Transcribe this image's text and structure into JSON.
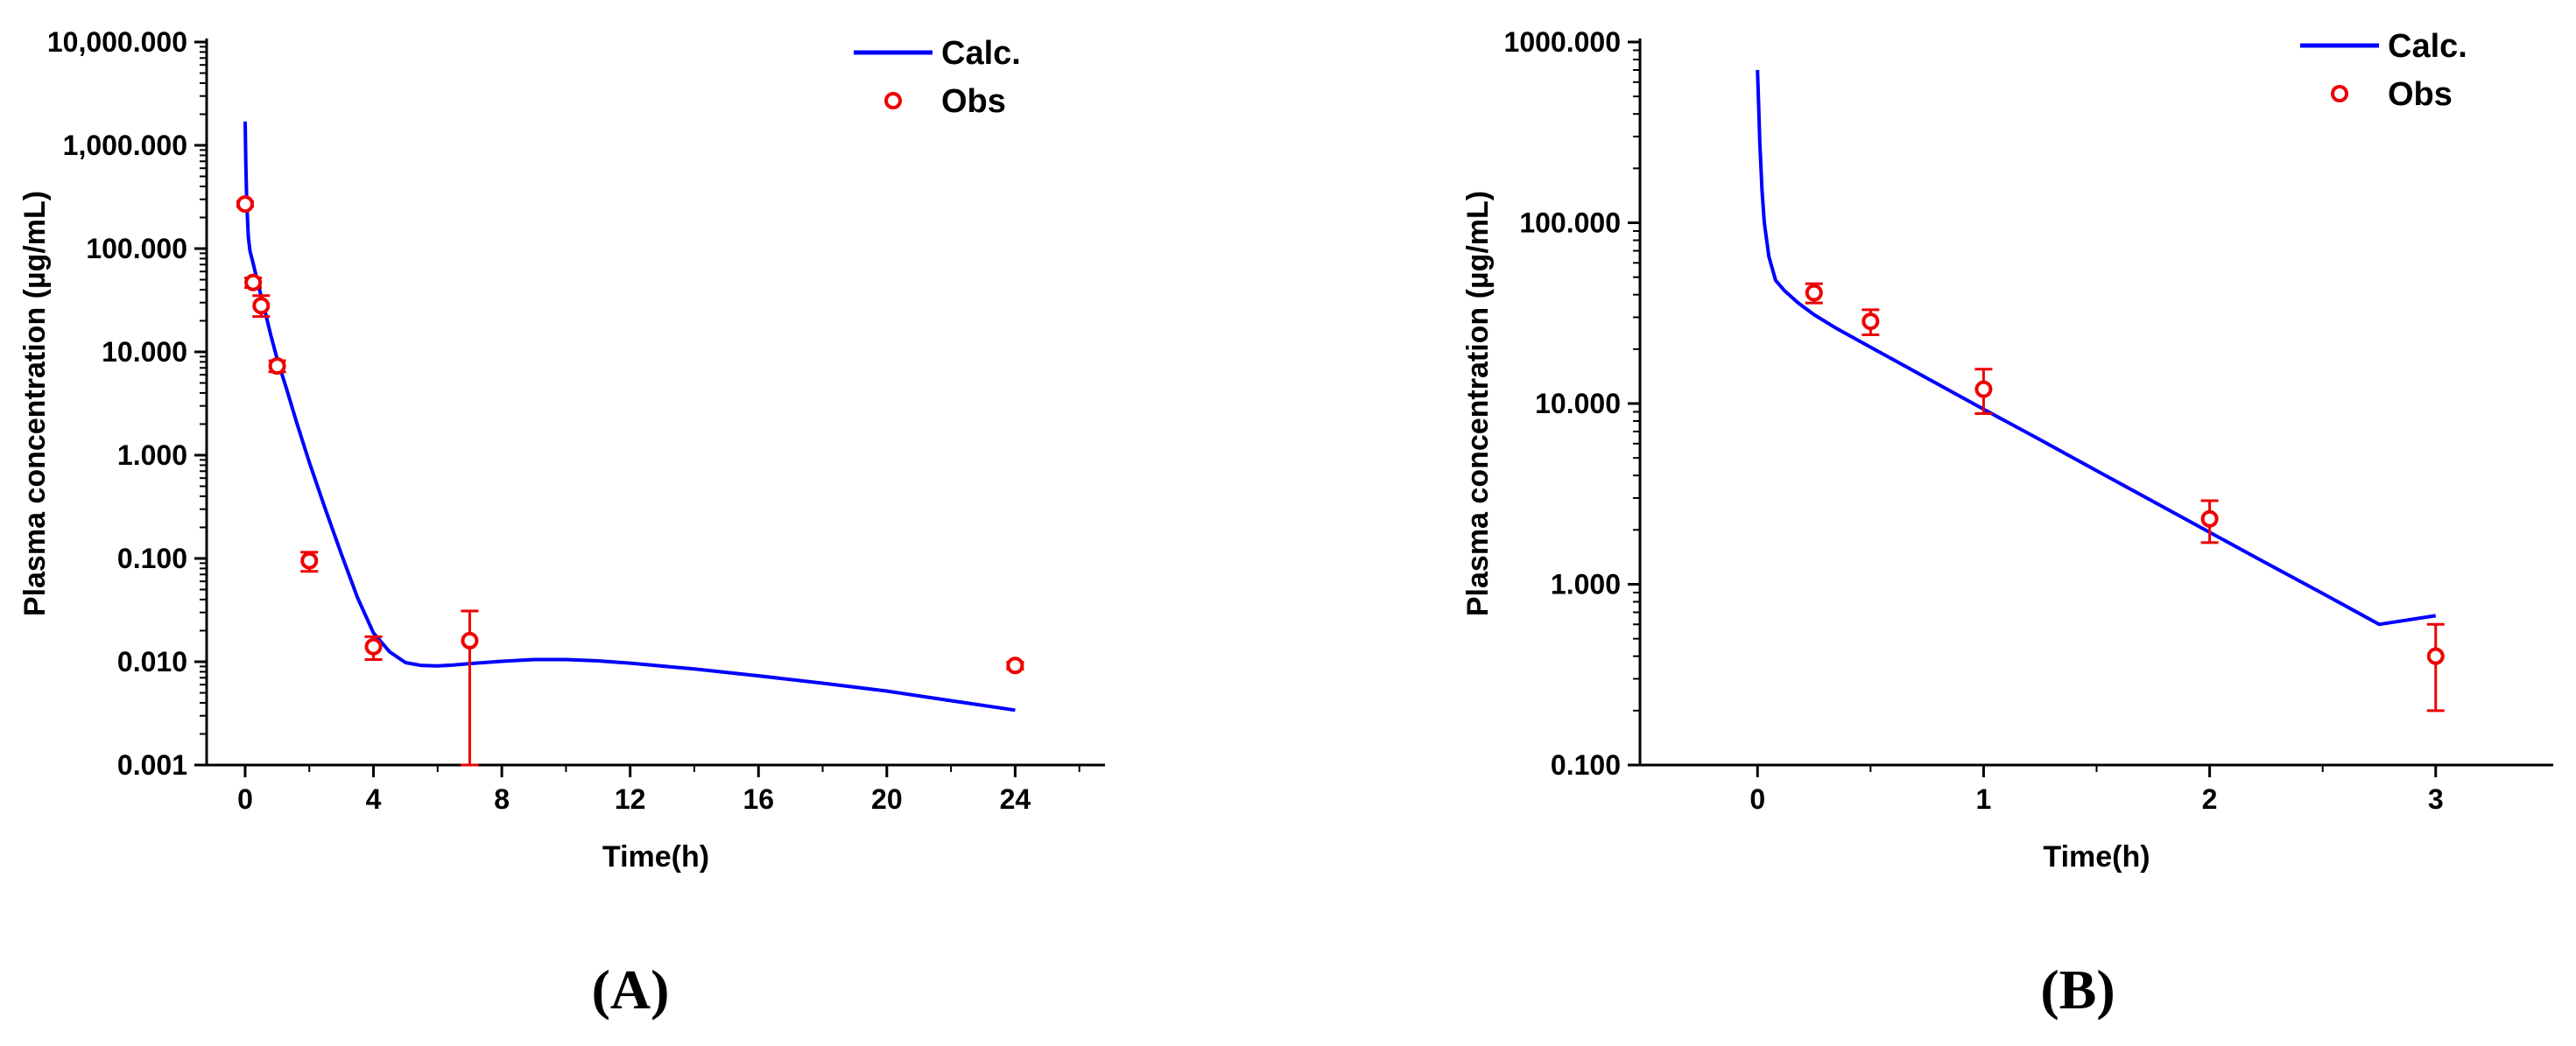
{
  "colors": {
    "calc": "#0000ff",
    "obs": "#ee0000",
    "axis": "#000000"
  },
  "chart_data": [
    {
      "panel_label": "(A)",
      "type": "line",
      "xlabel": "Time(h)",
      "ylabel": "Plasma concentration (µg/mL)",
      "xscale": "linear",
      "yscale": "log",
      "xlim": [
        -1.2,
        26.8
      ],
      "ylim": [
        0.001,
        10000
      ],
      "xticks": [
        0,
        4,
        8,
        12,
        16,
        20,
        24
      ],
      "xtick_labels": [
        "0",
        "4",
        "8",
        "12",
        "16",
        "20",
        "24"
      ],
      "xticks_minor": [
        2,
        6,
        10,
        14,
        18,
        22,
        26
      ],
      "yticks": [
        0.001,
        0.01,
        0.1,
        1,
        10,
        100,
        1000,
        10000
      ],
      "ytick_labels": [
        "0.001",
        "0.010",
        "0.100",
        "1.000",
        "10.000",
        "100.000",
        "1,000.000",
        "10,000.000"
      ],
      "legend": {
        "placement": "top-right",
        "calc_label": "Calc.",
        "obs_label": "Obs"
      },
      "calc": {
        "name": "Calc.",
        "x": [
          0,
          0.02,
          0.05,
          0.1,
          0.15,
          0.25,
          0.4,
          0.6,
          0.8,
          1.0,
          1.3,
          1.6,
          2.0,
          2.5,
          3.0,
          3.5,
          4.0,
          4.5,
          5.0,
          5.5,
          6.0,
          6.5,
          7.0,
          8.0,
          9.0,
          10.0,
          11.0,
          12.0,
          14.0,
          16.0,
          18.0,
          20.0,
          22.0,
          24.0
        ],
        "y": [
          1700,
          700,
          280,
          130,
          95,
          72,
          46,
          26,
          14.5,
          8.5,
          4.3,
          2.1,
          0.85,
          0.3,
          0.11,
          0.042,
          0.019,
          0.0125,
          0.0098,
          0.0092,
          0.0091,
          0.0093,
          0.0096,
          0.0101,
          0.0105,
          0.0105,
          0.0102,
          0.0097,
          0.0085,
          0.0073,
          0.0062,
          0.0052,
          0.0042,
          0.0034
        ]
      },
      "obs": {
        "name": "Obs",
        "x": [
          0,
          0.25,
          0.5,
          1,
          2,
          4,
          7,
          24
        ],
        "y": [
          270,
          47,
          28,
          7.3,
          0.095,
          0.014,
          0.016,
          0.0092
        ],
        "y_low": [
          255,
          42,
          22,
          6.4,
          0.075,
          0.0105,
          0.001,
          0.0085
        ],
        "y_high": [
          285,
          52,
          35,
          8.2,
          0.115,
          0.0175,
          0.031,
          0.0099
        ]
      }
    },
    {
      "panel_label": "(B)",
      "type": "line",
      "xlabel": "Time(h)",
      "ylabel": "Plasma concentration (µg/mL)",
      "xscale": "linear",
      "yscale": "log",
      "xlim": [
        -0.52,
        3.52
      ],
      "ylim": [
        0.1,
        1000
      ],
      "xticks": [
        0,
        1,
        2,
        3
      ],
      "xtick_labels": [
        "0",
        "1",
        "2",
        "3"
      ],
      "xticks_minor": [
        0.5,
        1.5,
        2.5
      ],
      "yticks": [
        0.1,
        1,
        10,
        100,
        1000
      ],
      "ytick_labels": [
        "0.100",
        "1.000",
        "10.000",
        "100.000",
        "1000.000"
      ],
      "legend": {
        "placement": "top-right",
        "calc_label": "Calc.",
        "obs_label": "Obs"
      },
      "calc": {
        "name": "Calc.",
        "x": [
          0,
          0.005,
          0.01,
          0.02,
          0.03,
          0.05,
          0.08,
          0.12,
          0.18,
          0.25,
          0.35,
          0.5,
          0.75,
          1.0,
          1.25,
          1.5,
          1.75,
          2.0,
          2.25,
          2.5,
          2.75,
          3.0
        ],
        "y": [
          700,
          450,
          280,
          150,
          100,
          65,
          48,
          42,
          36,
          31,
          26,
          20.5,
          13.8,
          9.3,
          6.3,
          4.25,
          2.87,
          1.94,
          1.31,
          0.89,
          0.6,
          0.67
        ]
      },
      "obs": {
        "name": "Obs",
        "x": [
          0.25,
          0.5,
          1,
          2,
          3
        ],
        "y": [
          41,
          28.5,
          12,
          2.3,
          0.4
        ],
        "y_low": [
          36,
          24,
          8.8,
          1.7,
          0.2
        ],
        "y_high": [
          46,
          33,
          15.5,
          2.9,
          0.6
        ]
      }
    }
  ]
}
